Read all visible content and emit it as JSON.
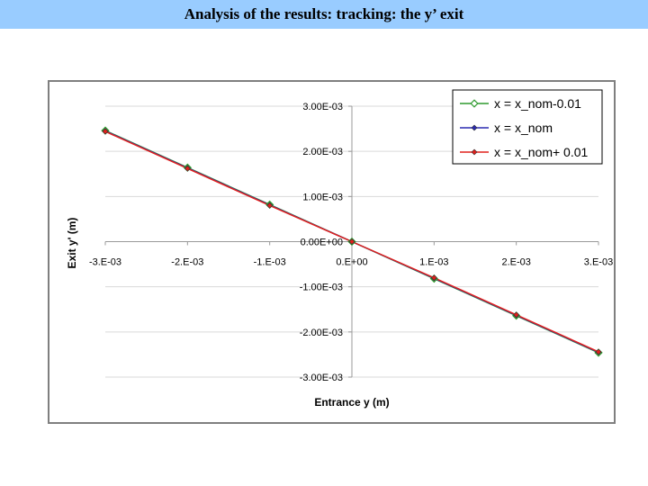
{
  "slide": {
    "title": "Analysis of the results: tracking: the y’ exit"
  },
  "chart_data": {
    "type": "line",
    "title": "",
    "xlabel": "Entrance y (m)",
    "ylabel": "Exit y' (m)",
    "xlim": [
      -0.003,
      0.003
    ],
    "ylim": [
      -0.003,
      0.003
    ],
    "x_tick_values": [
      -0.003,
      -0.002,
      -0.001,
      0,
      0.001,
      0.002,
      0.003
    ],
    "x_tick_labels": [
      "-3.E-03",
      "-2.E-03",
      "-1.E-03",
      "0.E+00",
      "1.E-03",
      "2.E-03",
      "3.E-03"
    ],
    "y_tick_values": [
      0.003,
      0.002,
      0.001,
      0,
      -0.001,
      -0.002,
      -0.003
    ],
    "y_tick_labels": [
      "3.00E-03",
      "2.00E-03",
      "1.00E-03",
      "0.00E+00",
      "-1.00E-03",
      "-2.00E-03",
      "-3.00E-03"
    ],
    "grid": true,
    "legend_position": "top-right",
    "x": [
      -0.003,
      -0.002,
      -0.001,
      0,
      0.001,
      0.002,
      0.003
    ],
    "series": [
      {
        "name": "x = x_nom-0.01",
        "color": "#2e9a2e",
        "marker": "open-diamond",
        "values": [
          0.00246,
          0.00164,
          0.00082,
          0,
          -0.00082,
          -0.00164,
          -0.00246
        ]
      },
      {
        "name": "x = x_nom",
        "color": "#2a2ab0",
        "marker": "diamond",
        "values": [
          0.00245,
          0.00163,
          0.00081,
          0,
          -0.00081,
          -0.00163,
          -0.00245
        ]
      },
      {
        "name": "x = x_nom+ 0.01",
        "color": "#e0201c",
        "marker": "diamond",
        "values": [
          0.00244,
          0.00162,
          0.0008,
          0,
          -0.0008,
          -0.00162,
          -0.00244
        ]
      }
    ]
  }
}
